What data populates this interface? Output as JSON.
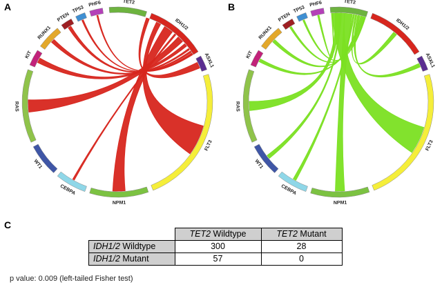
{
  "panels": {
    "a": "A",
    "b": "B",
    "c": "C"
  },
  "genes": [
    {
      "name": "TET2",
      "color": "#6db33f"
    },
    {
      "name": "IDH1/2",
      "color": "#d7261e"
    },
    {
      "name": "ASXL1",
      "color": "#5b2d91"
    },
    {
      "name": "FLT3",
      "color": "#f5ee3a"
    },
    {
      "name": "NPM1",
      "color": "#7cc242"
    },
    {
      "name": "CEBPA",
      "color": "#8fd7e8"
    },
    {
      "name": "WT1",
      "color": "#3f56a6"
    },
    {
      "name": "RAS",
      "color": "#8fc34a"
    },
    {
      "name": "KIT",
      "color": "#c2227a"
    },
    {
      "name": "RUNX1",
      "color": "#e3a82b"
    },
    {
      "name": "PTEN",
      "color": "#9e1f23"
    },
    {
      "name": "TP53",
      "color": "#3f8fd2"
    },
    {
      "name": "PHF6",
      "color": "#b440b8"
    }
  ],
  "chords": {
    "a": {
      "hub": "IDH1/2",
      "color": "#d7261e"
    },
    "b": {
      "hub": "TET2",
      "color": "#7be022"
    }
  },
  "table": {
    "col1_gene": "TET2",
    "col1_suffix": " Wildtype",
    "col2_gene": "TET2",
    "col2_suffix": " Mutant",
    "row1_gene": "IDH1/2",
    "row1_suffix": " Wildtype",
    "row2_gene": "IDH1/2",
    "row2_suffix": " Mutant",
    "r1c1": "300",
    "r1c2": "28",
    "r2c1": "57",
    "r2c2": "0"
  },
  "pvalue": "p value: 0.009 (left-tailed Fisher test)"
}
